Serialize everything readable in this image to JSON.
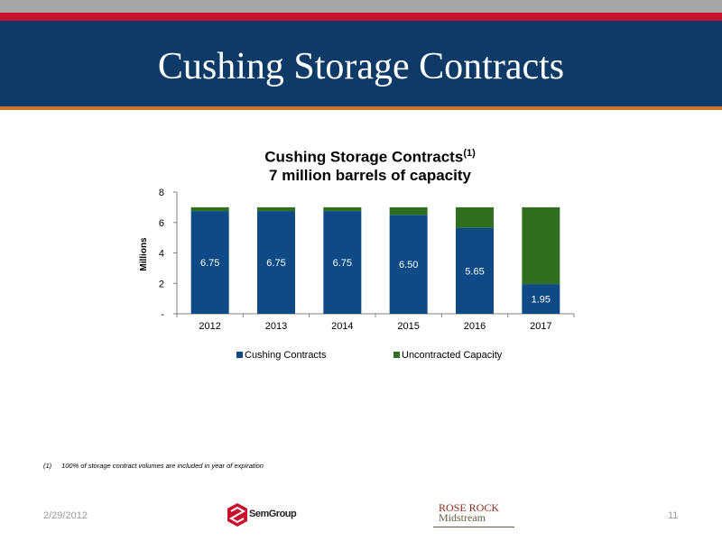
{
  "slide": {
    "title": "Cushing Storage Contracts",
    "footnote_marker": "(1)",
    "footnote_text": "100% of storage contract volumes are included in year of expiration",
    "date": "2/29/2012",
    "page_number": "11",
    "logos": {
      "semgroup_text": "SemGroup",
      "rose_rock_line1": "ROSE ROCK",
      "rose_rock_line2": "Midstream"
    }
  },
  "chart_data": {
    "type": "bar",
    "stacked": true,
    "title": "Cushing Storage Contracts",
    "title_superscript": "(1)",
    "subtitle": "7 million barrels of capacity",
    "categories": [
      "2012",
      "2013",
      "2014",
      "2015",
      "2016",
      "2017"
    ],
    "series": [
      {
        "name": "Cushing Contracts",
        "values": [
          6.75,
          6.75,
          6.75,
          6.5,
          5.65,
          1.95
        ],
        "color": "#0d4a86",
        "data_labels": [
          "6.75",
          "6.75",
          "6.75",
          "6.50",
          "5.65",
          "1.95"
        ]
      },
      {
        "name": "Uncontracted Capacity",
        "values": [
          0.25,
          0.25,
          0.25,
          0.5,
          1.35,
          5.05
        ],
        "color": "#2f6f1f"
      }
    ],
    "ylabel": "Millions",
    "ylim": [
      0,
      8
    ],
    "yticks": [
      0,
      2,
      4,
      6,
      8
    ],
    "ytick_labels": [
      "-",
      "2",
      "4",
      "6",
      "8"
    ],
    "grid": false,
    "legend_position": "bottom"
  }
}
